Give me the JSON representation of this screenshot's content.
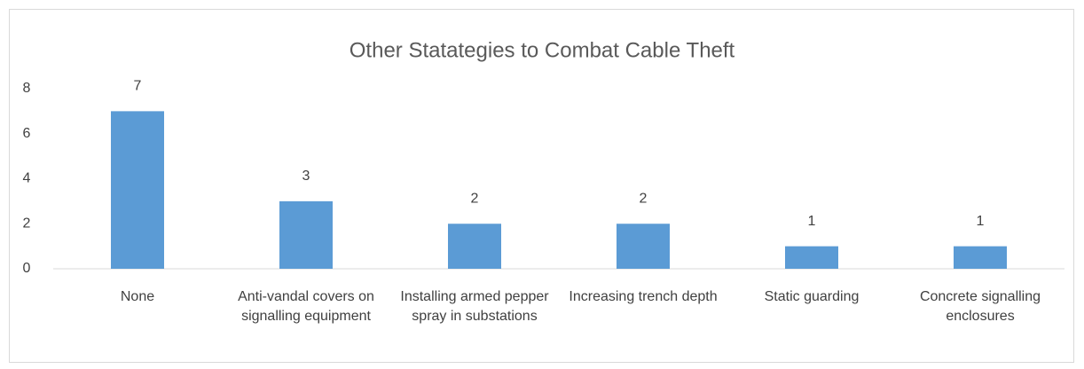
{
  "chart_data": {
    "type": "bar",
    "title": "Other Statategies to Combat Cable Theft",
    "categories": [
      "None",
      "Anti-vandal covers on signalling equipment",
      "Installing armed pepper spray in substations",
      "Increasing trench depth",
      "Static guarding",
      "Concrete signalling enclosures"
    ],
    "values": [
      7,
      3,
      2,
      2,
      1,
      1
    ],
    "color": "#5b9bd5",
    "ylim": [
      0,
      8
    ],
    "yticks": [
      0,
      2,
      4,
      6,
      8
    ],
    "grid": false
  }
}
